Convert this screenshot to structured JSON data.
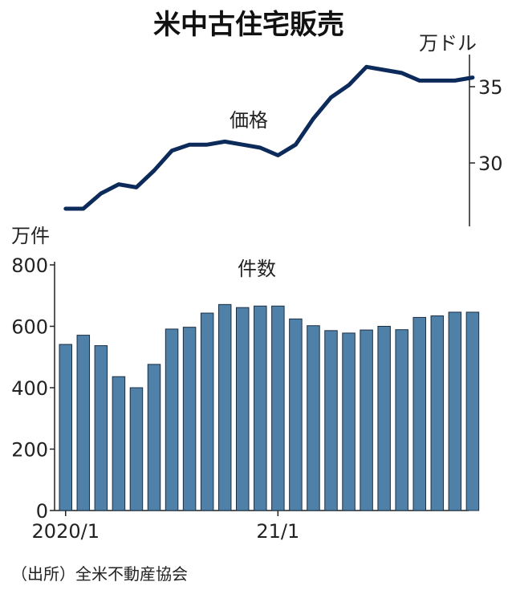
{
  "title": "米中古住宅販売",
  "source": "（出所）全米不動産協会",
  "colors": {
    "line": "#0d2b5a",
    "bar": "#4e80a8",
    "bar_edge": "#1c2f44"
  },
  "chart_data": [
    {
      "type": "line",
      "name": "価格",
      "unit": "万ドル",
      "yaxis_side": "right",
      "ylim": [
        26.5,
        37.5
      ],
      "yticks": [
        30,
        35
      ],
      "x": [
        "2020/1",
        "2020/2",
        "2020/3",
        "2020/4",
        "2020/5",
        "2020/6",
        "2020/7",
        "2020/8",
        "2020/9",
        "2020/10",
        "2020/11",
        "2020/12",
        "2021/1",
        "2021/2",
        "2021/3",
        "2021/4",
        "2021/5",
        "2021/6",
        "2021/7",
        "2021/8",
        "2021/9",
        "2021/10",
        "2021/11",
        "2021/12"
      ],
      "values": [
        27.0,
        27.0,
        28.0,
        28.6,
        28.4,
        29.5,
        30.8,
        31.2,
        31.2,
        31.4,
        31.2,
        31.0,
        30.5,
        31.2,
        32.9,
        34.3,
        35.1,
        36.3,
        36.1,
        35.9,
        35.4,
        35.4,
        35.4,
        35.6
      ]
    },
    {
      "type": "bar",
      "name": "件数",
      "unit": "万件",
      "ylim": [
        0,
        800
      ],
      "yticks": [
        0,
        200,
        400,
        600,
        800
      ],
      "xtick_labels": [
        {
          "index": 0,
          "label": "2020/1"
        },
        {
          "index": 12,
          "label": "21/1"
        }
      ],
      "categories": [
        "2020/1",
        "2020/2",
        "2020/3",
        "2020/4",
        "2020/5",
        "2020/6",
        "2020/7",
        "2020/8",
        "2020/9",
        "2020/10",
        "2020/11",
        "2020/12",
        "2021/1",
        "2021/2",
        "2021/3",
        "2021/4",
        "2021/5",
        "2021/6",
        "2021/7",
        "2021/8",
        "2021/9",
        "2021/10",
        "2021/11",
        "2021/12"
      ],
      "values": [
        541,
        571,
        537,
        436,
        400,
        476,
        591,
        597,
        643,
        671,
        661,
        666,
        666,
        624,
        602,
        586,
        578,
        588,
        600,
        589,
        629,
        634,
        646,
        646
      ]
    }
  ]
}
